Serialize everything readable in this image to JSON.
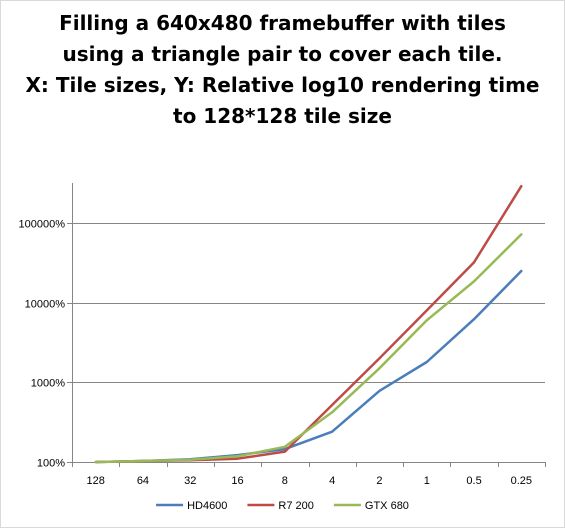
{
  "chart_data": {
    "type": "line",
    "title": "Filling a 640x480 framebuffer with tiles\nusing a triangle pair to cover each tile.\nX: Tile sizes, Y: Relative log10 rendering time\nto 128*128 tile size",
    "categories": [
      "128",
      "64",
      "32",
      "16",
      "8",
      "4",
      "2",
      "1",
      "0.5",
      "0.25"
    ],
    "yscale": "log",
    "ylim": [
      100,
      300000
    ],
    "yticks": [
      100,
      1000,
      10000,
      100000
    ],
    "yticklabels": [
      "100%",
      "1000%",
      "10000%",
      "100000%"
    ],
    "grid": true,
    "legend_position": "bottom",
    "series": [
      {
        "name": "HD4600",
        "color": "#4a7ebb",
        "values": [
          100,
          103,
          108,
          122,
          145,
          240,
          780,
          1800,
          6200,
          25000
        ]
      },
      {
        "name": "R7 200",
        "color": "#be4b48",
        "values": [
          100,
          103,
          105,
          110,
          135,
          520,
          2000,
          8000,
          32000,
          290000
        ]
      },
      {
        "name": "GTX 680",
        "color": "#98b954",
        "values": [
          100,
          103,
          107,
          118,
          155,
          420,
          1500,
          6000,
          18500,
          72000
        ]
      }
    ]
  }
}
